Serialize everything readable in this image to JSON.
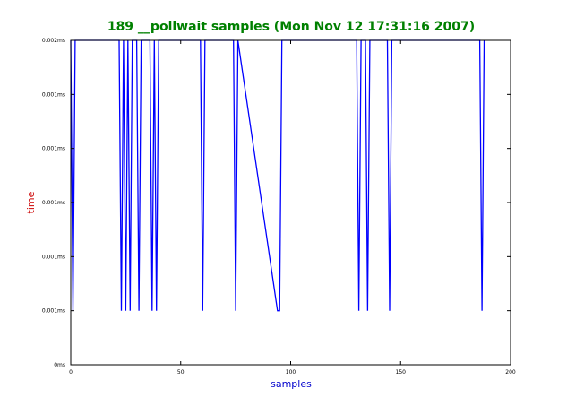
{
  "chart_data": {
    "type": "line",
    "title": "189 __pollwait samples (Mon Nov 12 17:31:16 2007)",
    "xlabel": "samples",
    "ylabel": "time",
    "xlim": [
      0,
      200
    ],
    "ylim": [
      0,
      6
    ],
    "x_ticks": [
      {
        "value": 0,
        "label": "0"
      },
      {
        "value": 50,
        "label": "50"
      },
      {
        "value": 100,
        "label": "100"
      },
      {
        "value": 150,
        "label": "150"
      },
      {
        "value": 200,
        "label": "200"
      }
    ],
    "y_ticks": [
      {
        "value": 0,
        "label": "0ms"
      },
      {
        "value": 1,
        "label": "0.001ms"
      },
      {
        "value": 2,
        "label": "0.001ms"
      },
      {
        "value": 3,
        "label": "0.001ms"
      },
      {
        "value": 4,
        "label": "0.001ms"
      },
      {
        "value": 5,
        "label": "0.001ms"
      },
      {
        "value": 6,
        "label": "0.002ms"
      }
    ],
    "series": [
      {
        "color": "#0000ff",
        "x": [
          0,
          1,
          2,
          22,
          23,
          24,
          25,
          26,
          27,
          28,
          30,
          31,
          32,
          36,
          37,
          38,
          39,
          40,
          59,
          60,
          61,
          74,
          75,
          76,
          94,
          95,
          96,
          130,
          131,
          132,
          134,
          135,
          136,
          144,
          145,
          146,
          186,
          187,
          188
        ],
        "y": [
          6,
          1,
          6,
          6,
          1,
          6,
          1,
          6,
          1,
          6,
          6,
          1,
          6,
          6,
          1,
          6,
          1,
          6,
          6,
          1,
          6,
          6,
          1,
          6,
          1,
          1,
          6,
          6,
          1,
          6,
          6,
          1,
          6,
          6,
          1,
          6,
          6,
          1,
          6
        ]
      }
    ],
    "colors": {
      "title": "#008000",
      "xlabel": "#0000cc",
      "ylabel": "#cc0000",
      "line": "#0000ff"
    },
    "grid": false,
    "legend": "none"
  }
}
